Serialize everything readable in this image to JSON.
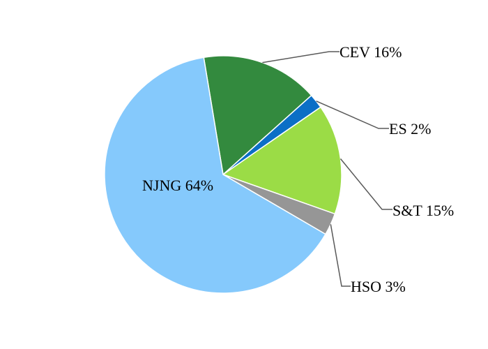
{
  "chart_data": {
    "type": "pie",
    "title": "",
    "slices": [
      {
        "name": "CEV",
        "value": 16,
        "label": "CEV 16%",
        "color": "#338a3e"
      },
      {
        "name": "ES",
        "value": 2,
        "label": "ES 2%",
        "color": "#0b6fc6"
      },
      {
        "name": "S&T",
        "value": 15,
        "label": "S&T 15%",
        "color": "#9bdc46"
      },
      {
        "name": "HSO",
        "value": 3,
        "label": "HSO 3%",
        "color": "#969696"
      },
      {
        "name": "NJNG",
        "value": 64,
        "label": "NJNG 64%",
        "color": "#85c9fc"
      }
    ],
    "legend": "none"
  }
}
